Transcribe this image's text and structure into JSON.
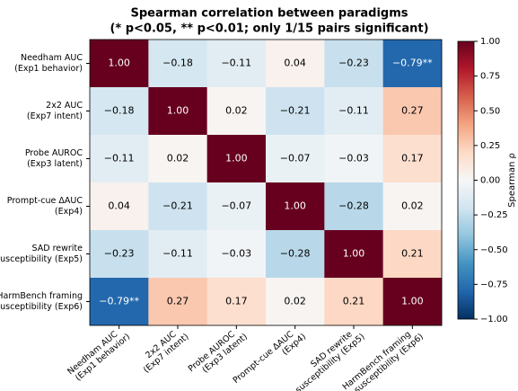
{
  "chart_data": {
    "type": "heatmap",
    "title": "Spearman correlation between paradigms",
    "subtitle": "(* p<0.05, ** p<0.01; only 1/15 pairs significant)",
    "rows": [
      [
        "Needham AUC",
        "(Exp1 behavior)"
      ],
      [
        "2x2 AUC",
        "(Exp7 intent)"
      ],
      [
        "Probe AUROC",
        "(Exp3 latent)"
      ],
      [
        "Prompt-cue ΔAUC",
        "(Exp4)"
      ],
      [
        "SAD rewrite",
        "susceptibility (Exp5)"
      ],
      [
        "HarmBench framing",
        "susceptibility (Exp6)"
      ]
    ],
    "columns": [
      [
        "Needham AUC",
        "(Exp1 behavior)"
      ],
      [
        "2x2 AUC",
        "(Exp7 intent)"
      ],
      [
        "Probe AUROC",
        "(Exp3 latent)"
      ],
      [
        "Prompt-cue ΔAUC",
        "(Exp4)"
      ],
      [
        "SAD rewrite",
        "susceptibility (Exp5)"
      ],
      [
        "HarmBench framing",
        "susceptibility (Exp6)"
      ]
    ],
    "values": [
      [
        1,
        -0.18,
        -0.11,
        0.04,
        -0.23,
        -0.79
      ],
      [
        -0.18,
        1,
        0.02,
        -0.21,
        -0.11,
        0.27
      ],
      [
        -0.11,
        0.02,
        1,
        -0.07,
        -0.03,
        0.17
      ],
      [
        0.04,
        -0.21,
        -0.07,
        1,
        -0.28,
        0.02
      ],
      [
        -0.23,
        -0.11,
        -0.03,
        -0.28,
        1,
        0.21
      ],
      [
        -0.79,
        0.27,
        0.17,
        0.02,
        0.21,
        1
      ]
    ],
    "value_labels": [
      [
        "1.00",
        "−0.18",
        "−0.11",
        "0.04",
        "−0.23",
        "−0.79**"
      ],
      [
        "−0.18",
        "1.00",
        "0.02",
        "−0.21",
        "−0.11",
        "0.27"
      ],
      [
        "−0.11",
        "0.02",
        "1.00",
        "−0.07",
        "−0.03",
        "0.17"
      ],
      [
        "0.04",
        "−0.21",
        "−0.07",
        "1.00",
        "−0.28",
        "0.02"
      ],
      [
        "−0.23",
        "−0.11",
        "−0.03",
        "−0.28",
        "1.00",
        "0.21"
      ],
      [
        "−0.79**",
        "0.27",
        "0.17",
        "0.02",
        "0.21",
        "1.00"
      ]
    ],
    "colormap": "RdBu_r",
    "clim": [
      -1,
      1
    ],
    "colorbar_label": "Spearman ρ",
    "cticks": [
      {
        "value": 1,
        "label": "1.00"
      },
      {
        "value": 0.75,
        "label": "0.75"
      },
      {
        "value": 0.5,
        "label": "0.50"
      },
      {
        "value": 0.25,
        "label": "0.25"
      },
      {
        "value": 0,
        "label": "0.00"
      },
      {
        "value": -0.25,
        "label": "−0.25"
      },
      {
        "value": -0.5,
        "label": "−0.50"
      },
      {
        "value": -0.75,
        "label": "−0.75"
      },
      {
        "value": -1,
        "label": "−1.00"
      }
    ]
  }
}
